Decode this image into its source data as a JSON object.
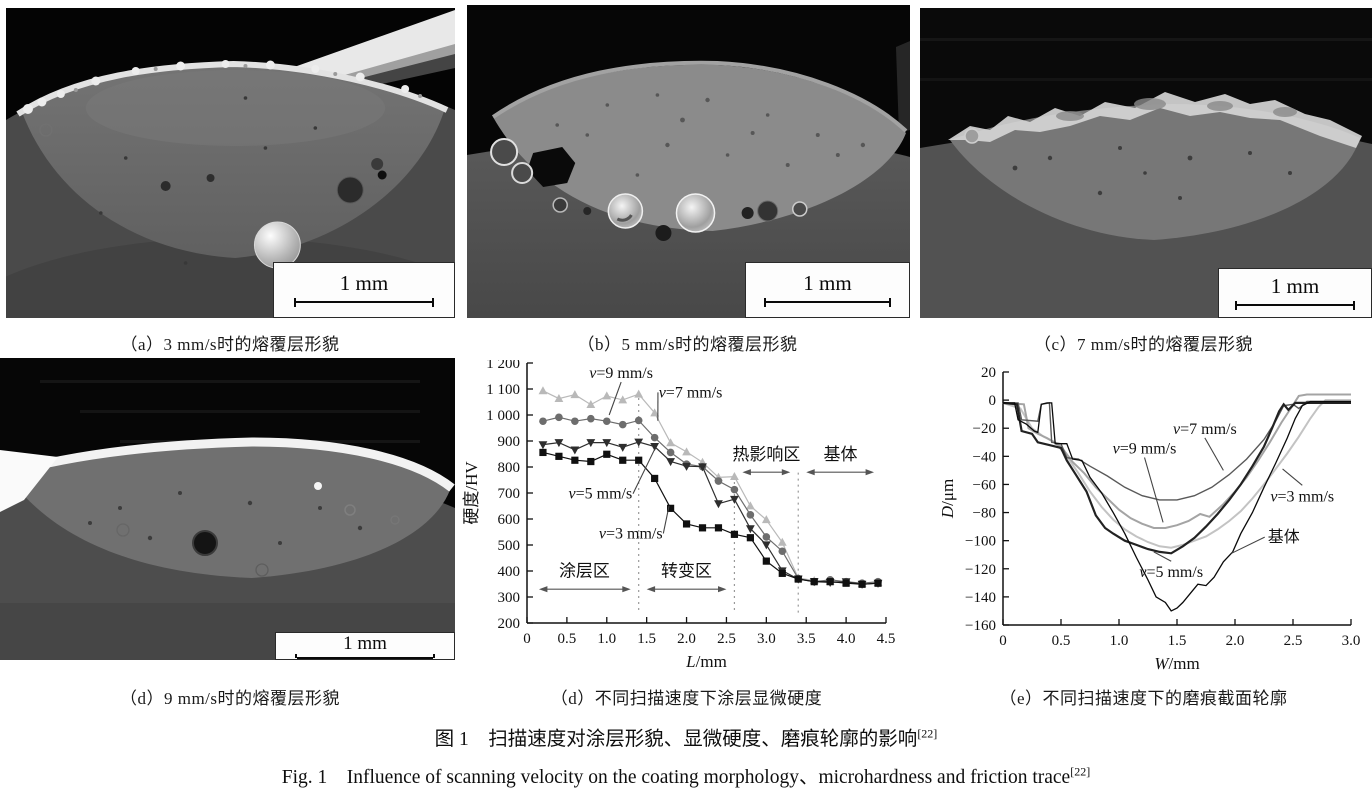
{
  "figure": {
    "caption_zh": "图 1　扫描速度对涂层形貌、显微硬度、磨痕轮廓的影响",
    "caption_en": "Fig. 1　Influence of scanning velocity on the coating morphology、microhardness and friction trace",
    "ref": "[22]"
  },
  "panels": {
    "a": {
      "caption": "（a）3 mm/s时的熔覆层形貌",
      "scale_label": "1 mm"
    },
    "b": {
      "caption": "（b）5 mm/s时的熔覆层形貌",
      "scale_label": "1 mm"
    },
    "c": {
      "caption": "（c）7 mm/s时的熔覆层形貌",
      "scale_label": "1 mm"
    },
    "d_sem": {
      "caption": "（d）9 mm/s时的熔覆层形貌",
      "scale_label": "1 mm"
    },
    "d_chart": {
      "caption": "（d）不同扫描速度下涂层显微硬度"
    },
    "e_chart": {
      "caption": "（e）不同扫描速度下的磨痕截面轮廓"
    }
  },
  "chart_data": [
    {
      "id": "microhardness",
      "type": "line",
      "xlabel": "L/mm",
      "ylabel": "硬度/HV",
      "xlim": [
        0,
        4.5
      ],
      "ylim": [
        200,
        1200
      ],
      "grid": false,
      "legend": "inline-labels",
      "xticks": [
        0,
        0.5,
        1.0,
        1.5,
        2.0,
        2.5,
        3.0,
        3.5,
        4.0,
        4.5
      ],
      "xtick_labels": [
        "0",
        "0.5",
        "1.0",
        "1.5",
        "2.0",
        "2.5",
        "3.0",
        "3.5",
        "4.0",
        "4.5"
      ],
      "yticks": [
        200,
        300,
        400,
        500,
        600,
        700,
        800,
        900,
        1000,
        1100,
        1200
      ],
      "ytick_labels": [
        "200",
        "300",
        "400",
        "500",
        "600",
        "700",
        "800",
        "900",
        "1 000",
        "1 100",
        "1 200"
      ],
      "x": [
        0.2,
        0.4,
        0.6,
        0.8,
        1.0,
        1.2,
        1.4,
        1.6,
        1.8,
        2.0,
        2.2,
        2.4,
        2.6,
        2.8,
        3.0,
        3.2,
        3.4,
        3.6,
        3.8,
        4.0,
        4.2,
        4.4
      ],
      "series": [
        {
          "name": "v=7 mm/s",
          "marker": "triangle-up",
          "color": "#b9b9b9",
          "values": [
            1093,
            1063,
            1078,
            1040,
            1073,
            1058,
            1080,
            1008,
            893,
            858,
            818,
            760,
            763,
            650,
            597,
            510,
            373,
            363,
            360,
            357,
            352,
            356
          ]
        },
        {
          "name": "v=9 mm/s",
          "marker": "circle",
          "color": "#6d6d6d",
          "values": [
            976,
            991,
            976,
            986,
            976,
            963,
            979,
            913,
            856,
            811,
            801,
            746,
            713,
            616,
            531,
            476,
            371,
            359,
            366,
            359,
            353,
            359
          ]
        },
        {
          "name": "v=5 mm/s",
          "marker": "triangle-down",
          "color": "#2e2e2e",
          "values": [
            886,
            894,
            866,
            894,
            894,
            876,
            896,
            879,
            821,
            803,
            801,
            659,
            676,
            563,
            501,
            401,
            369,
            359,
            356,
            359,
            349,
            353
          ]
        },
        {
          "name": "v=3 mm/s",
          "marker": "square",
          "color": "#101010",
          "values": [
            856,
            841,
            826,
            821,
            849,
            826,
            826,
            756,
            641,
            581,
            566,
            566,
            541,
            528,
            438,
            391,
            369,
            359,
            359,
            353,
            349,
            353
          ]
        }
      ],
      "vlines": [
        {
          "x": 1.4,
          "y1": 250,
          "y2": 1080
        },
        {
          "x": 2.6,
          "y1": 250,
          "y2": 775
        },
        {
          "x": 3.4,
          "y1": 240,
          "y2": 790
        }
      ],
      "zones": [
        {
          "label": "涂层区",
          "x1": 0.15,
          "x2": 1.3,
          "arrow_y": 330,
          "label_x": 0.72,
          "label_y": 402
        },
        {
          "label": "转变区",
          "x1": 1.5,
          "x2": 2.5,
          "arrow_y": 330,
          "label_x": 2.0,
          "label_y": 402
        },
        {
          "label": "热影响区",
          "x1": 2.7,
          "x2": 3.3,
          "arrow_y": 780,
          "label_x": 3.0,
          "label_y": 850
        },
        {
          "label": "基体",
          "x1": 3.5,
          "x2": 4.35,
          "arrow_y": 780,
          "label_x": 3.93,
          "label_y": 850
        }
      ],
      "labels": [
        {
          "text": "v=9 mm/s",
          "x": 1.18,
          "y": 1142,
          "tx": 1.03,
          "ty": 1000
        },
        {
          "text": "v=7 mm/s",
          "x": 2.05,
          "y": 1068,
          "tx": 1.64,
          "ty": 978
        },
        {
          "text": "v=5 mm/s",
          "x": 0.92,
          "y": 678,
          "tx": 1.6,
          "ty": 868
        },
        {
          "text": "v=3 mm/s",
          "x": 1.3,
          "y": 525,
          "tx": 1.78,
          "ty": 650
        }
      ]
    },
    {
      "id": "wear-profile",
      "type": "line",
      "xlabel": "W/mm",
      "ylabel": "D/μm",
      "xlim": [
        0,
        3.0
      ],
      "ylim": [
        -160,
        20
      ],
      "grid": false,
      "legend": "inline-labels",
      "xticks": [
        0,
        0.5,
        1.0,
        1.5,
        2.0,
        2.5,
        3.0
      ],
      "xtick_labels": [
        "0",
        "0.5",
        "1.0",
        "1.5",
        "2.0",
        "2.5",
        "3.0"
      ],
      "yticks": [
        -160,
        -140,
        -120,
        -100,
        -80,
        -60,
        -40,
        -20,
        0,
        20
      ],
      "ytick_labels": [
        "−160",
        "−140",
        "−120",
        "−100",
        "−80",
        "−60",
        "−40",
        "−20",
        "0",
        "20"
      ],
      "series": [
        {
          "name": "v=3 mm/s",
          "color": "#c3c3c3",
          "width": 2,
          "points": [
            [
              0,
              -2
            ],
            [
              0.15,
              -6
            ],
            [
              0.25,
              -20
            ],
            [
              0.35,
              -26
            ],
            [
              0.45,
              -30
            ],
            [
              0.55,
              -40
            ],
            [
              0.65,
              -52
            ],
            [
              0.75,
              -65
            ],
            [
              0.85,
              -76
            ],
            [
              0.95,
              -85
            ],
            [
              1.05,
              -92
            ],
            [
              1.15,
              -97
            ],
            [
              1.25,
              -101
            ],
            [
              1.35,
              -104
            ],
            [
              1.45,
              -105
            ],
            [
              1.55,
              -103
            ],
            [
              1.65,
              -100
            ],
            [
              1.75,
              -97
            ],
            [
              1.85,
              -92
            ],
            [
              1.95,
              -86
            ],
            [
              2.05,
              -79
            ],
            [
              2.15,
              -70
            ],
            [
              2.25,
              -60
            ],
            [
              2.35,
              -49
            ],
            [
              2.45,
              -38
            ],
            [
              2.55,
              -26
            ],
            [
              2.65,
              -13
            ],
            [
              2.72,
              -5
            ],
            [
              2.78,
              0
            ],
            [
              3,
              0
            ]
          ]
        },
        {
          "name": "v=9 mm/s",
          "color": "#a4a4a4",
          "width": 2,
          "points": [
            [
              0,
              -2
            ],
            [
              0.18,
              -3
            ],
            [
              0.22,
              -20
            ],
            [
              0.3,
              -24
            ],
            [
              0.38,
              -27
            ],
            [
              0.5,
              -33
            ],
            [
              0.6,
              -44
            ],
            [
              0.7,
              -52
            ],
            [
              0.8,
              -62
            ],
            [
              0.9,
              -70
            ],
            [
              1.0,
              -78
            ],
            [
              1.1,
              -84
            ],
            [
              1.2,
              -88
            ],
            [
              1.3,
              -91
            ],
            [
              1.4,
              -91
            ],
            [
              1.5,
              -89
            ],
            [
              1.6,
              -86
            ],
            [
              1.7,
              -81
            ],
            [
              1.78,
              -83
            ],
            [
              1.9,
              -74
            ],
            [
              2.0,
              -65
            ],
            [
              2.1,
              -55
            ],
            [
              2.2,
              -43
            ],
            [
              2.3,
              -30
            ],
            [
              2.4,
              -16
            ],
            [
              2.48,
              -6
            ],
            [
              2.55,
              3
            ],
            [
              2.62,
              4
            ],
            [
              3,
              4
            ]
          ]
        },
        {
          "name": "v=7 mm/s",
          "color": "#595959",
          "width": 1.4,
          "points": [
            [
              0,
              -2
            ],
            [
              0.13,
              -2
            ],
            [
              0.16,
              -14
            ],
            [
              0.3,
              -15
            ],
            [
              0.33,
              -3
            ],
            [
              0.4,
              -2
            ],
            [
              0.42,
              -30
            ],
            [
              0.5,
              -31
            ],
            [
              0.55,
              -41
            ],
            [
              0.65,
              -42
            ],
            [
              0.75,
              -47
            ],
            [
              0.9,
              -54
            ],
            [
              1.05,
              -62
            ],
            [
              1.2,
              -68
            ],
            [
              1.35,
              -71
            ],
            [
              1.5,
              -71
            ],
            [
              1.65,
              -68
            ],
            [
              1.8,
              -62
            ],
            [
              1.95,
              -53
            ],
            [
              2.1,
              -42
            ],
            [
              2.25,
              -28
            ],
            [
              2.35,
              -15
            ],
            [
              2.42,
              -4
            ],
            [
              2.5,
              -3
            ],
            [
              2.55,
              -6
            ],
            [
              2.62,
              -1
            ],
            [
              2.8,
              -1
            ],
            [
              3,
              -1
            ]
          ]
        },
        {
          "name": "v=5 mm/s",
          "color": "#222222",
          "width": 2.2,
          "points": [
            [
              0,
              -2
            ],
            [
              0.12,
              -3
            ],
            [
              0.16,
              -22
            ],
            [
              0.25,
              -24
            ],
            [
              0.3,
              -30
            ],
            [
              0.4,
              -32
            ],
            [
              0.5,
              -34
            ],
            [
              0.55,
              -43
            ],
            [
              0.62,
              -52
            ],
            [
              0.72,
              -65
            ],
            [
              0.8,
              -82
            ],
            [
              0.88,
              -91
            ],
            [
              0.95,
              -95
            ],
            [
              1.05,
              -100
            ],
            [
              1.15,
              -103
            ],
            [
              1.25,
              -106
            ],
            [
              1.35,
              -108
            ],
            [
              1.45,
              -109
            ],
            [
              1.55,
              -104
            ],
            [
              1.65,
              -98
            ],
            [
              1.75,
              -90
            ],
            [
              1.85,
              -81
            ],
            [
              1.95,
              -71
            ],
            [
              2.05,
              -60
            ],
            [
              2.15,
              -47
            ],
            [
              2.25,
              -33
            ],
            [
              2.32,
              -20
            ],
            [
              2.38,
              -8
            ],
            [
              2.42,
              -3
            ],
            [
              2.46,
              -7
            ],
            [
              2.52,
              -2
            ],
            [
              2.6,
              -2
            ],
            [
              3,
              -2
            ]
          ]
        },
        {
          "name": "基体",
          "color": "#0a0a0a",
          "width": 1.3,
          "points": [
            [
              0,
              -2
            ],
            [
              0.1,
              -2
            ],
            [
              0.13,
              -14
            ],
            [
              0.2,
              -17
            ],
            [
              0.27,
              -22
            ],
            [
              0.3,
              -23
            ],
            [
              0.33,
              -3
            ],
            [
              0.38,
              -2
            ],
            [
              0.42,
              -2
            ],
            [
              0.45,
              -31
            ],
            [
              0.55,
              -31
            ],
            [
              0.6,
              -42
            ],
            [
              0.68,
              -43
            ],
            [
              0.75,
              -55
            ],
            [
              0.85,
              -66
            ],
            [
              0.95,
              -80
            ],
            [
              1.05,
              -95
            ],
            [
              1.15,
              -112
            ],
            [
              1.25,
              -128
            ],
            [
              1.32,
              -140
            ],
            [
              1.4,
              -144
            ],
            [
              1.45,
              -150
            ],
            [
              1.5,
              -148
            ],
            [
              1.55,
              -144
            ],
            [
              1.62,
              -137
            ],
            [
              1.68,
              -131
            ],
            [
              1.75,
              -132
            ],
            [
              1.82,
              -126
            ],
            [
              1.9,
              -115
            ],
            [
              1.98,
              -108
            ],
            [
              2.05,
              -95
            ],
            [
              2.15,
              -80
            ],
            [
              2.25,
              -62
            ],
            [
              2.35,
              -45
            ],
            [
              2.45,
              -27
            ],
            [
              2.52,
              -13
            ],
            [
              2.58,
              -4
            ],
            [
              2.65,
              -1
            ],
            [
              2.8,
              -1
            ],
            [
              3,
              -1
            ]
          ]
        }
      ],
      "labels": [
        {
          "text": "v=7 mm/s",
          "x": 1.74,
          "y": -24,
          "tx": 1.9,
          "ty": -50
        },
        {
          "text": "v=9 mm/s",
          "x": 1.22,
          "y": -38,
          "tx": 1.38,
          "ty": -87
        },
        {
          "text": "v=3 mm/s",
          "x": 2.58,
          "y": -72,
          "tx": 2.41,
          "ty": -49
        },
        {
          "text": "v=5 mm/s",
          "x": 1.45,
          "y": -126,
          "tx": 1.3,
          "ty": -108
        },
        {
          "text": "基体",
          "x": 2.42,
          "y": -101,
          "tx": 1.97,
          "ty": -109
        }
      ]
    }
  ]
}
